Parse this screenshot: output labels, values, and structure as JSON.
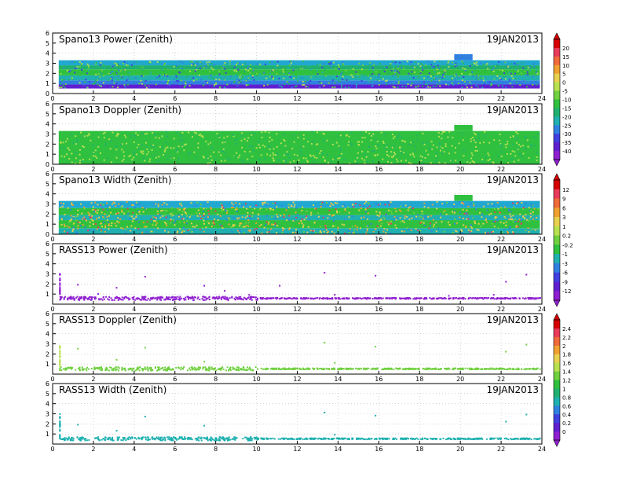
{
  "chart_data": [
    {
      "type": "heatmap",
      "title": "Spano13 Power (Zenith)",
      "date": "19JAN2013",
      "xlim": [
        0,
        24
      ],
      "ylim": [
        0,
        6
      ],
      "xticks": [
        0,
        2,
        4,
        6,
        8,
        10,
        12,
        14,
        16,
        18,
        20,
        22,
        24
      ],
      "yticks": [
        0,
        1,
        2,
        3,
        4,
        5,
        6
      ],
      "colorbar": {
        "labels": [
          "20",
          "15",
          "10",
          "5",
          "0",
          "-5",
          "-10",
          "-15",
          "-20",
          "-25",
          "-30",
          "-35",
          "-40"
        ],
        "colors": [
          "#d60000",
          "#e83a5a",
          "#f06a3a",
          "#f0a030",
          "#e8d050",
          "#b8e050",
          "#70d040",
          "#30c040",
          "#20b070",
          "#20b0b0",
          "#3080e0",
          "#4040e0",
          "#6020d0",
          "#9020d0"
        ]
      },
      "layers": [
        {
          "y": [
            0.5,
            0.9
          ],
          "color": "#6020d0"
        },
        {
          "y": [
            0.9,
            1.3
          ],
          "color": "#3080e0"
        },
        {
          "y": [
            1.3,
            1.8
          ],
          "color": "#20b0b0"
        },
        {
          "y": [
            1.8,
            2.4
          ],
          "color": "#30c040"
        },
        {
          "y": [
            2.4,
            2.8
          ],
          "color": "#20b070"
        },
        {
          "y": [
            2.8,
            3.3
          ],
          "color": "#20a8d0"
        }
      ]
    },
    {
      "type": "heatmap",
      "title": "Spano13 Doppler (Zenith)",
      "date": "19JAN2013",
      "xlim": [
        0,
        24
      ],
      "ylim": [
        0,
        6
      ],
      "xticks": [
        0,
        2,
        4,
        6,
        8,
        10,
        12,
        14,
        16,
        18,
        20,
        22,
        24
      ],
      "yticks": [
        0,
        1,
        2,
        3,
        4,
        5,
        6
      ],
      "colorbar": null,
      "layers": [
        {
          "y": [
            0.0,
            3.3
          ],
          "color": "#30c040"
        }
      ]
    },
    {
      "type": "heatmap",
      "title": "Spano13 Width (Zenith)",
      "date": "19JAN2013",
      "xlim": [
        0,
        24
      ],
      "ylim": [
        0,
        6
      ],
      "xticks": [
        0,
        2,
        4,
        6,
        8,
        10,
        12,
        14,
        16,
        18,
        20,
        22,
        24
      ],
      "yticks": [
        0,
        1,
        2,
        3,
        4,
        5,
        6
      ],
      "colorbar": {
        "labels": [
          "12",
          "9",
          "6",
          "3",
          "1",
          "0.2",
          "-0.2",
          "-1",
          "-3",
          "-6",
          "-9",
          "-12"
        ],
        "colors": [
          "#d60000",
          "#e83a5a",
          "#f06a3a",
          "#f0a030",
          "#e8d050",
          "#b8e050",
          "#70d040",
          "#30c040",
          "#20b0b0",
          "#3080e0",
          "#4040e0",
          "#6020d0",
          "#9020d0"
        ]
      },
      "layers": [
        {
          "y": [
            0.0,
            0.6
          ],
          "color": "#20b0b0"
        },
        {
          "y": [
            0.6,
            1.4
          ],
          "color": "#30c040"
        },
        {
          "y": [
            1.4,
            1.9
          ],
          "color": "#20b0b0"
        },
        {
          "y": [
            1.9,
            2.6
          ],
          "color": "#30c040"
        },
        {
          "y": [
            2.6,
            3.3
          ],
          "color": "#20a8d0"
        }
      ]
    },
    {
      "type": "scatter",
      "title": "RASS13 Power (Zenith)",
      "date": "19JAN2013",
      "xlim": [
        0,
        24
      ],
      "ylim": [
        0,
        6
      ],
      "xticks": [
        0,
        2,
        4,
        6,
        8,
        10,
        12,
        14,
        16,
        18,
        20,
        22,
        24
      ],
      "yticks": [
        1,
        2,
        3,
        4,
        5,
        6
      ],
      "colorbar": null,
      "band": {
        "y": 0.65,
        "color": "#9020d0"
      },
      "points": [
        [
          1.2,
          2.0
        ],
        [
          2.2,
          1.1
        ],
        [
          3.1,
          1.7
        ],
        [
          4.5,
          2.8
        ],
        [
          7.4,
          1.9
        ],
        [
          8.4,
          1.4
        ],
        [
          9.6,
          1.0
        ],
        [
          11.1,
          1.9
        ],
        [
          13.3,
          3.2
        ],
        [
          13.8,
          1.0
        ],
        [
          15.8,
          2.9
        ],
        [
          22.2,
          2.3
        ],
        [
          23.2,
          3.0
        ],
        [
          19.4,
          0.9
        ],
        [
          21.6,
          1.0
        ]
      ]
    },
    {
      "type": "scatter",
      "title": "RASS13 Doppler (Zenith)",
      "date": "19JAN2013",
      "xlim": [
        0,
        24
      ],
      "ylim": [
        0,
        6
      ],
      "xticks": [
        0,
        2,
        4,
        6,
        8,
        10,
        12,
        14,
        16,
        18,
        20,
        22,
        24
      ],
      "yticks": [
        1,
        2,
        3,
        4,
        5,
        6
      ],
      "colorbar": {
        "labels": [
          "2.4",
          "2.2",
          "2",
          "1.8",
          "1.6",
          "1.4",
          "1.2",
          "1",
          "0.8",
          "0.6",
          "0.4",
          "0.2",
          "0"
        ],
        "colors": [
          "#d60000",
          "#e83a5a",
          "#f06a3a",
          "#f0a030",
          "#e8d050",
          "#b8e050",
          "#70d040",
          "#30c040",
          "#20b070",
          "#20b0b0",
          "#3080e0",
          "#4040e0",
          "#6020d0",
          "#9020d0"
        ]
      },
      "band": {
        "y": 0.6,
        "color": "#70d040"
      },
      "points": [
        [
          1.2,
          2.6
        ],
        [
          3.1,
          1.5
        ],
        [
          4.5,
          2.7
        ],
        [
          7.4,
          1.3
        ],
        [
          13.3,
          3.2
        ],
        [
          13.8,
          1.2
        ],
        [
          15.8,
          2.8
        ],
        [
          22.2,
          2.3
        ],
        [
          23.2,
          3.0
        ]
      ]
    },
    {
      "type": "scatter",
      "title": "RASS13 Width (Zenith)",
      "date": "19JAN2013",
      "xlim": [
        0,
        24
      ],
      "ylim": [
        0,
        6
      ],
      "xticks": [
        0,
        2,
        4,
        6,
        8,
        10,
        12,
        14,
        16,
        18,
        20,
        22,
        24
      ],
      "yticks": [
        1,
        2,
        3,
        4,
        5,
        6
      ],
      "colorbar": null,
      "band": {
        "y": 0.6,
        "color": "#20b0b0"
      },
      "points": [
        [
          1.2,
          2.0
        ],
        [
          3.1,
          1.4
        ],
        [
          4.5,
          2.8
        ],
        [
          7.4,
          1.9
        ],
        [
          13.3,
          3.2
        ],
        [
          13.8,
          1.0
        ],
        [
          15.8,
          2.9
        ],
        [
          22.2,
          2.3
        ],
        [
          23.2,
          3.0
        ]
      ]
    }
  ]
}
